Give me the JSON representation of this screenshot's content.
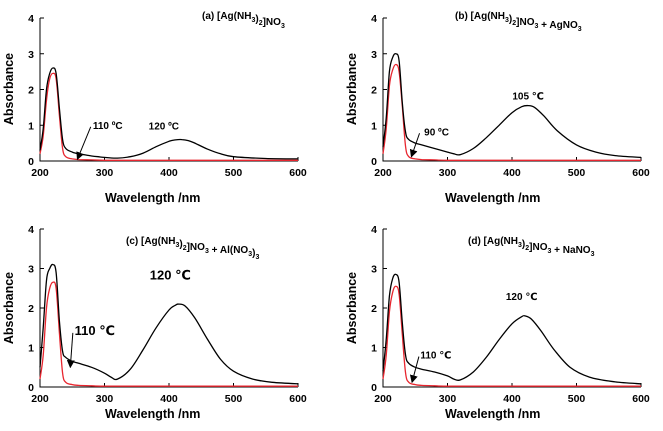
{
  "chart_data": [
    {
      "type": "line",
      "title_parts": [
        [
          "(a) [Ag(NH",
          ""
        ],
        [
          "3",
          "sub"
        ],
        [
          ")",
          ""
        ],
        [
          "2",
          "sub"
        ],
        [
          "]NO",
          ""
        ],
        [
          "3",
          "sub"
        ]
      ],
      "xlabel": "Wavelength /nm",
      "ylabel": "Absorbance",
      "xlim": [
        200,
        600
      ],
      "ylim": [
        0,
        4
      ],
      "xticks": [
        "200",
        "300",
        "400",
        "500",
        "600"
      ],
      "yticks": [
        "0",
        "1",
        "2",
        "3",
        "4"
      ],
      "series": [
        {
          "name": "120 °C",
          "color": "#000000",
          "x": [
            200,
            205,
            210,
            215,
            220,
            225,
            230,
            235,
            240,
            250,
            260,
            270,
            280,
            290,
            300,
            320,
            340,
            360,
            380,
            400,
            410,
            420,
            430,
            440,
            460,
            480,
            500,
            550,
            600
          ],
          "y": [
            0.3,
            0.9,
            2.0,
            2.45,
            2.6,
            2.45,
            1.5,
            0.6,
            0.35,
            0.25,
            0.2,
            0.17,
            0.14,
            0.12,
            0.1,
            0.08,
            0.12,
            0.22,
            0.4,
            0.55,
            0.59,
            0.6,
            0.57,
            0.5,
            0.33,
            0.2,
            0.12,
            0.07,
            0.06
          ]
        },
        {
          "name": "110 °C",
          "color": "#e8262f",
          "x": [
            200,
            205,
            210,
            215,
            220,
            225,
            230,
            235,
            240,
            250,
            260,
            280,
            300,
            350,
            400,
            500,
            600
          ],
          "y": [
            0.2,
            0.7,
            1.7,
            2.3,
            2.45,
            2.3,
            1.3,
            0.35,
            0.12,
            0.06,
            0.04,
            0.03,
            0.02,
            0.02,
            0.02,
            0.02,
            0.02
          ]
        }
      ],
      "annotations": [
        {
          "text": "110 ºC",
          "x": 305,
          "y": 0.9,
          "arrow_to": [
            258,
            0.05
          ],
          "big": false
        },
        {
          "text": "120 ºC",
          "x": 392,
          "y": 0.88,
          "arrow_to": null,
          "big": false
        }
      ]
    },
    {
      "type": "line",
      "title_parts": [
        [
          "(b) [Ag(NH",
          ""
        ],
        [
          "3",
          "sub"
        ],
        [
          ")",
          ""
        ],
        [
          "2",
          "sub"
        ],
        [
          "]NO",
          ""
        ],
        [
          "3",
          "sub"
        ],
        [
          " + AgNO",
          ""
        ],
        [
          "3",
          "sub"
        ]
      ],
      "xlabel": "Wavelength /nm",
      "ylabel": "Absorbance",
      "xlim": [
        200,
        600
      ],
      "ylim": [
        0,
        4
      ],
      "xticks": [
        "200",
        "300",
        "400",
        "500",
        "600"
      ],
      "yticks": [
        "0",
        "1",
        "2",
        "3",
        "4"
      ],
      "series": [
        {
          "name": "105 ℃",
          "color": "#000000",
          "x": [
            200,
            205,
            210,
            215,
            220,
            225,
            230,
            235,
            240,
            250,
            260,
            280,
            300,
            310,
            320,
            340,
            360,
            380,
            400,
            415,
            425,
            435,
            450,
            470,
            500,
            530,
            560,
            600
          ],
          "y": [
            0.4,
            1.2,
            2.5,
            2.9,
            3.0,
            2.8,
            1.6,
            0.8,
            0.6,
            0.5,
            0.45,
            0.35,
            0.25,
            0.2,
            0.18,
            0.35,
            0.65,
            1.0,
            1.35,
            1.52,
            1.55,
            1.5,
            1.25,
            0.85,
            0.45,
            0.25,
            0.15,
            0.1
          ]
        },
        {
          "name": "90 °C",
          "color": "#e8262f",
          "x": [
            200,
            205,
            210,
            215,
            220,
            225,
            230,
            235,
            240,
            250,
            260,
            280,
            300,
            400,
            600
          ],
          "y": [
            0.2,
            0.9,
            2.1,
            2.55,
            2.7,
            2.5,
            1.5,
            0.4,
            0.12,
            0.06,
            0.04,
            0.03,
            0.02,
            0.02,
            0.02
          ]
        }
      ],
      "annotations": [
        {
          "text": "90 ºC",
          "x": 283,
          "y": 0.72,
          "arrow_to": [
            244,
            0.12
          ],
          "big": false
        },
        {
          "text": "105 ℃",
          "x": 425,
          "y": 1.72,
          "arrow_to": null,
          "big": false
        }
      ]
    },
    {
      "type": "line",
      "title_parts": [
        [
          "(c) [Ag(NH",
          ""
        ],
        [
          "3",
          "sub"
        ],
        [
          ")",
          ""
        ],
        [
          "2",
          "sub"
        ],
        [
          "]NO",
          ""
        ],
        [
          "3",
          "sub"
        ],
        [
          " + Al(NO",
          ""
        ],
        [
          "3",
          "sub"
        ],
        [
          ")",
          ""
        ],
        [
          "3",
          "sub"
        ]
      ],
      "xlabel": "Wavelength /nm",
      "ylabel": "Absorbance",
      "xlim": [
        200,
        600
      ],
      "ylim": [
        0,
        4
      ],
      "xticks": [
        "200",
        "300",
        "400",
        "500",
        "600"
      ],
      "yticks": [
        "0",
        "1",
        "2",
        "3",
        "4"
      ],
      "series": [
        {
          "name": "120 ℃",
          "color": "#000000",
          "x": [
            200,
            205,
            210,
            215,
            220,
            225,
            230,
            235,
            240,
            250,
            260,
            280,
            300,
            310,
            320,
            340,
            360,
            380,
            400,
            410,
            415,
            425,
            440,
            460,
            480,
            500,
            530,
            560,
            600
          ],
          "y": [
            0.5,
            1.5,
            2.7,
            3.0,
            3.1,
            2.9,
            1.7,
            0.9,
            0.75,
            0.65,
            0.6,
            0.5,
            0.35,
            0.25,
            0.2,
            0.45,
            0.95,
            1.5,
            1.95,
            2.07,
            2.1,
            2.05,
            1.75,
            1.2,
            0.7,
            0.4,
            0.2,
            0.12,
            0.08
          ]
        },
        {
          "name": "110 ℃",
          "color": "#e8262f",
          "x": [
            200,
            205,
            210,
            215,
            220,
            225,
            230,
            235,
            240,
            250,
            260,
            280,
            300,
            400,
            600
          ],
          "y": [
            0.2,
            0.8,
            2.0,
            2.5,
            2.65,
            2.5,
            1.4,
            0.35,
            0.12,
            0.06,
            0.04,
            0.03,
            0.02,
            0.02,
            0.02
          ]
        }
      ],
      "annotations": [
        {
          "text": "110 ℃",
          "x": 285,
          "y": 1.32,
          "arrow_to": [
            247,
            0.5
          ],
          "big": true
        },
        {
          "text": "120 ℃",
          "x": 402,
          "y": 2.72,
          "arrow_to": null,
          "big": true
        }
      ]
    },
    {
      "type": "line",
      "title_parts": [
        [
          "(d) [Ag(NH",
          ""
        ],
        [
          "3",
          "sub"
        ],
        [
          ")",
          ""
        ],
        [
          "2",
          "sub"
        ],
        [
          "]NO",
          ""
        ],
        [
          "3",
          "sub"
        ],
        [
          " + NaNO",
          ""
        ],
        [
          "3",
          "sub"
        ]
      ],
      "xlabel": "Wavelength /nm",
      "ylabel": "Absorbance",
      "xlim": [
        200,
        600
      ],
      "ylim": [
        0,
        4
      ],
      "xticks": [
        "200",
        "300",
        "400",
        "500",
        "600"
      ],
      "yticks": [
        "0",
        "1",
        "2",
        "3",
        "4"
      ],
      "series": [
        {
          "name": "120 ℃",
          "color": "#000000",
          "x": [
            200,
            205,
            210,
            215,
            220,
            225,
            230,
            235,
            240,
            250,
            260,
            280,
            300,
            310,
            320,
            340,
            360,
            380,
            400,
            415,
            420,
            430,
            445,
            465,
            490,
            520,
            560,
            600
          ],
          "y": [
            0.4,
            1.2,
            2.3,
            2.75,
            2.85,
            2.65,
            1.6,
            0.8,
            0.6,
            0.5,
            0.45,
            0.38,
            0.28,
            0.2,
            0.18,
            0.38,
            0.75,
            1.2,
            1.6,
            1.78,
            1.8,
            1.72,
            1.42,
            0.95,
            0.5,
            0.25,
            0.13,
            0.08
          ]
        },
        {
          "name": "110 ℃",
          "color": "#e8262f",
          "x": [
            200,
            205,
            210,
            215,
            220,
            225,
            230,
            235,
            240,
            250,
            260,
            280,
            300,
            400,
            600
          ],
          "y": [
            0.2,
            0.8,
            1.9,
            2.4,
            2.55,
            2.35,
            1.3,
            0.35,
            0.12,
            0.06,
            0.04,
            0.03,
            0.02,
            0.02,
            0.02
          ]
        }
      ],
      "annotations": [
        {
          "text": "110 ℃",
          "x": 282,
          "y": 0.72,
          "arrow_to": [
            245,
            0.12
          ],
          "big": false
        },
        {
          "text": "120 ℃",
          "x": 415,
          "y": 2.2,
          "arrow_to": null,
          "big": false
        }
      ]
    }
  ]
}
